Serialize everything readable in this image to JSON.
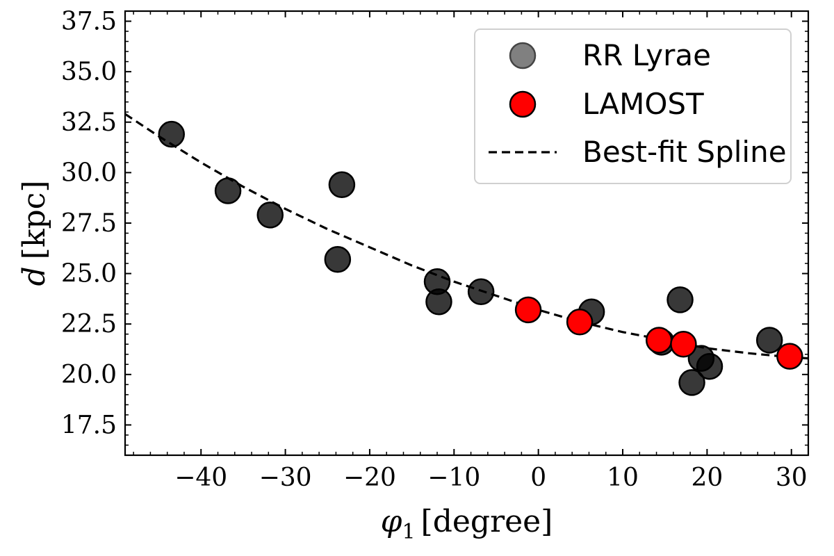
{
  "chart_data": {
    "type": "scatter",
    "xlabel_symbol": "φ",
    "xlabel_subscript": "1",
    "xlabel_unit": "[degree]",
    "ylabel_symbol": "d",
    "ylabel_unit": "[kpc]",
    "xlim": [
      -49,
      32
    ],
    "ylim": [
      16.0,
      38.0
    ],
    "xticks": [
      -40,
      -30,
      -20,
      -10,
      0,
      10,
      20,
      30
    ],
    "xtick_labels": [
      "−40",
      "−30",
      "−20",
      "−10",
      "0",
      "10",
      "20",
      "30"
    ],
    "yticks": [
      17.5,
      20.0,
      22.5,
      25.0,
      27.5,
      30.0,
      32.5,
      35.0,
      37.5
    ],
    "ytick_labels": [
      "17.5",
      "20.0",
      "22.5",
      "25.0",
      "27.5",
      "30.0",
      "32.5",
      "35.0",
      "37.5"
    ],
    "grid": false,
    "legend_position": "top-right",
    "series": [
      {
        "name": "RR Lyrae",
        "marker": "circle",
        "color": "#000000",
        "legend_color": "#808080",
        "points": [
          {
            "x": -43.5,
            "y": 31.9
          },
          {
            "x": -36.8,
            "y": 29.1
          },
          {
            "x": -31.8,
            "y": 27.9
          },
          {
            "x": -23.3,
            "y": 29.4
          },
          {
            "x": -23.8,
            "y": 25.7
          },
          {
            "x": -12.0,
            "y": 24.6
          },
          {
            "x": -11.8,
            "y": 23.6
          },
          {
            "x": -6.8,
            "y": 24.1
          },
          {
            "x": 6.3,
            "y": 23.1
          },
          {
            "x": 14.6,
            "y": 21.6
          },
          {
            "x": 16.8,
            "y": 23.7
          },
          {
            "x": 18.2,
            "y": 19.6
          },
          {
            "x": 19.3,
            "y": 20.8
          },
          {
            "x": 20.3,
            "y": 20.4
          },
          {
            "x": 27.4,
            "y": 21.7
          }
        ]
      },
      {
        "name": "LAMOST",
        "marker": "circle",
        "color": "#ff0000",
        "points": [
          {
            "x": -1.2,
            "y": 23.2
          },
          {
            "x": 4.9,
            "y": 22.6
          },
          {
            "x": 14.3,
            "y": 21.7
          },
          {
            "x": 17.2,
            "y": 21.5
          },
          {
            "x": 29.8,
            "y": 20.9
          }
        ]
      },
      {
        "name": "Best-fit Spline",
        "line_style": "dashed",
        "color": "#000000",
        "points": [
          {
            "x": -49.0,
            "y": 32.9
          },
          {
            "x": -45.0,
            "y": 31.8
          },
          {
            "x": -40.0,
            "y": 30.5
          },
          {
            "x": -35.0,
            "y": 29.3
          },
          {
            "x": -30.0,
            "y": 28.2
          },
          {
            "x": -25.0,
            "y": 27.2
          },
          {
            "x": -20.0,
            "y": 26.3
          },
          {
            "x": -15.0,
            "y": 25.4
          },
          {
            "x": -10.0,
            "y": 24.6
          },
          {
            "x": -5.0,
            "y": 23.9
          },
          {
            "x": 0.0,
            "y": 23.2
          },
          {
            "x": 5.0,
            "y": 22.6
          },
          {
            "x": 10.0,
            "y": 22.1
          },
          {
            "x": 15.0,
            "y": 21.7
          },
          {
            "x": 20.0,
            "y": 21.3
          },
          {
            "x": 25.0,
            "y": 21.05
          },
          {
            "x": 30.0,
            "y": 20.85
          },
          {
            "x": 32.0,
            "y": 20.8
          }
        ]
      }
    ]
  }
}
